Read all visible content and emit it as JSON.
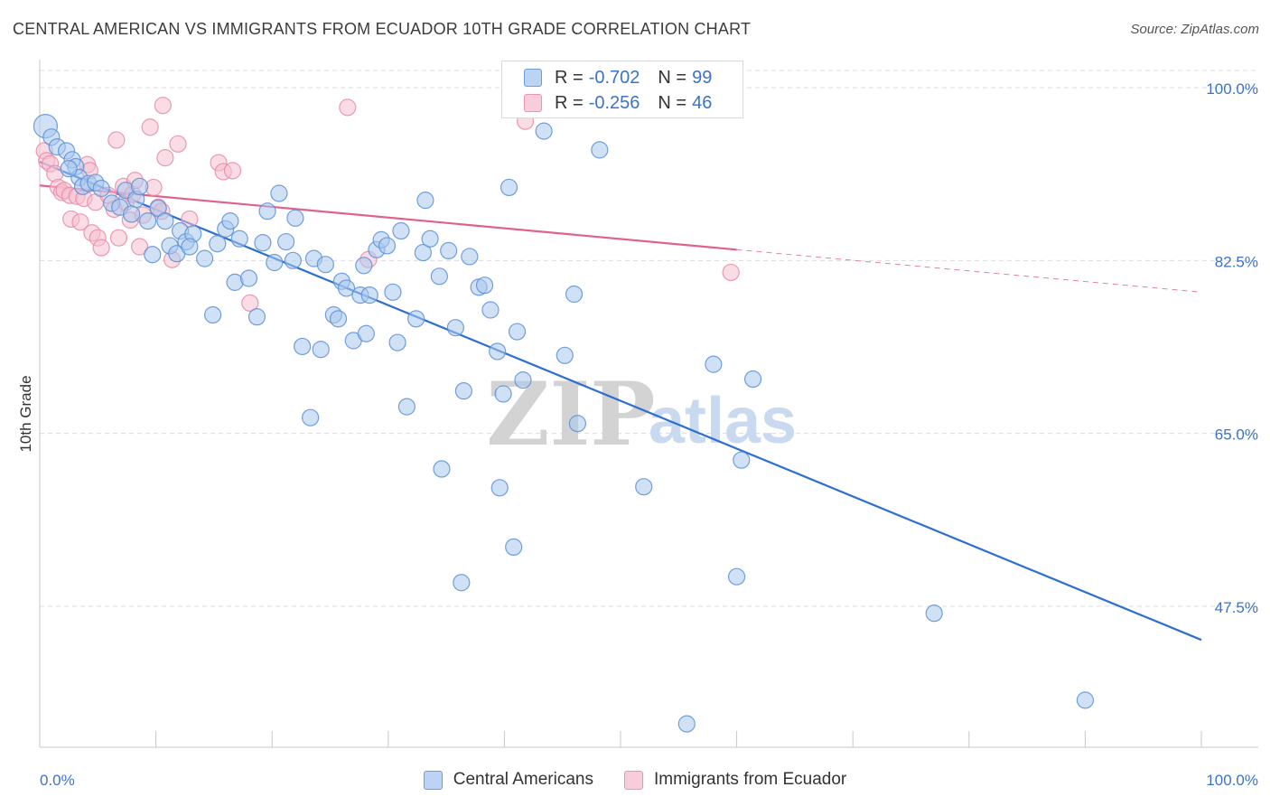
{
  "title": "CENTRAL AMERICAN VS IMMIGRANTS FROM ECUADOR 10TH GRADE CORRELATION CHART",
  "source": "Source: ZipAtlas.com",
  "watermark": {
    "zip": "ZIP",
    "atlas": "atlas"
  },
  "legend_top": [
    {
      "r_label": "R =",
      "r_value": "-0.702",
      "n_label": "N =",
      "n_value": "99"
    },
    {
      "r_label": "R =",
      "r_value": "-0.256",
      "n_label": "N =",
      "n_value": "46"
    }
  ],
  "legend_bottom": [
    "Central Americans",
    "Immigrants from Ecuador"
  ],
  "colors": {
    "blue_fill": "#a9c8ef",
    "blue_stroke": "#5a8fd6",
    "blue_line": "#2b6fd2",
    "pink_fill": "#f6bfd0",
    "pink_stroke": "#e889a8",
    "pink_line": "#e0608e",
    "axis_text": "#3b73c8",
    "grid": "#dcdcdc"
  },
  "chart_data": {
    "type": "scatter",
    "title": "CENTRAL AMERICAN VS IMMIGRANTS FROM ECUADOR 10TH GRADE CORRELATION CHART",
    "xlabel": "",
    "ylabel": "10th Grade",
    "xlim": [
      0,
      100
    ],
    "ylim": [
      32,
      101
    ],
    "x_tick_labels": [
      "0.0%",
      "100.0%"
    ],
    "y_ticks": [
      47.5,
      65.0,
      82.5,
      100.0
    ],
    "y_tick_labels": [
      "47.5%",
      "65.0%",
      "82.5%",
      "100.0%"
    ],
    "grid": true,
    "legend_position": "top-center",
    "series": [
      {
        "name": "Central Americans",
        "color": "blue",
        "points": [
          [
            0.5,
            96.1
          ],
          [
            1.0,
            95.0
          ],
          [
            1.5,
            94.0
          ],
          [
            2.3,
            93.6
          ],
          [
            2.8,
            92.7
          ],
          [
            3.1,
            92.0
          ],
          [
            3.4,
            90.9
          ],
          [
            3.7,
            90.0
          ],
          [
            4.2,
            90.3
          ],
          [
            4.8,
            90.4
          ],
          [
            5.3,
            89.8
          ],
          [
            6.2,
            88.3
          ],
          [
            6.9,
            87.9
          ],
          [
            7.4,
            89.6
          ],
          [
            8.3,
            88.7
          ],
          [
            8.6,
            90.0
          ],
          [
            9.3,
            86.5
          ],
          [
            9.7,
            83.1
          ],
          [
            10.2,
            87.8
          ],
          [
            10.8,
            86.5
          ],
          [
            11.2,
            84.0
          ],
          [
            11.8,
            83.2
          ],
          [
            12.1,
            85.5
          ],
          [
            12.6,
            84.4
          ],
          [
            13.2,
            85.2
          ],
          [
            14.2,
            82.7
          ],
          [
            14.9,
            77.0
          ],
          [
            15.3,
            84.2
          ],
          [
            16.0,
            85.7
          ],
          [
            16.4,
            86.5
          ],
          [
            16.8,
            80.3
          ],
          [
            17.2,
            84.7
          ],
          [
            18.0,
            80.7
          ],
          [
            18.7,
            76.8
          ],
          [
            19.2,
            84.3
          ],
          [
            19.6,
            87.5
          ],
          [
            20.2,
            82.3
          ],
          [
            20.6,
            89.3
          ],
          [
            21.2,
            84.4
          ],
          [
            21.8,
            82.5
          ],
          [
            22.0,
            86.8
          ],
          [
            22.6,
            73.8
          ],
          [
            23.3,
            66.6
          ],
          [
            23.6,
            82.7
          ],
          [
            24.2,
            73.5
          ],
          [
            24.6,
            82.1
          ],
          [
            25.3,
            77.0
          ],
          [
            25.7,
            76.6
          ],
          [
            26.0,
            80.4
          ],
          [
            26.4,
            79.7
          ],
          [
            27.0,
            74.4
          ],
          [
            27.6,
            79.0
          ],
          [
            28.1,
            75.1
          ],
          [
            28.4,
            79.0
          ],
          [
            29.0,
            83.6
          ],
          [
            29.4,
            84.6
          ],
          [
            29.9,
            84.0
          ],
          [
            30.4,
            79.3
          ],
          [
            30.8,
            74.2
          ],
          [
            31.1,
            85.5
          ],
          [
            31.6,
            67.7
          ],
          [
            32.4,
            76.6
          ],
          [
            33.0,
            83.3
          ],
          [
            33.2,
            88.6
          ],
          [
            33.6,
            84.7
          ],
          [
            34.4,
            80.9
          ],
          [
            34.6,
            61.4
          ],
          [
            35.2,
            83.5
          ],
          [
            35.8,
            75.7
          ],
          [
            36.3,
            49.9
          ],
          [
            36.5,
            69.3
          ],
          [
            37.0,
            82.9
          ],
          [
            37.8,
            79.8
          ],
          [
            38.3,
            80.0
          ],
          [
            38.8,
            77.5
          ],
          [
            39.4,
            73.3
          ],
          [
            39.6,
            59.5
          ],
          [
            39.9,
            69.0
          ],
          [
            40.8,
            53.5
          ],
          [
            41.1,
            75.3
          ],
          [
            41.6,
            70.4
          ],
          [
            43.4,
            95.6
          ],
          [
            45.2,
            72.9
          ],
          [
            46.0,
            79.1
          ],
          [
            46.3,
            66.0
          ],
          [
            48.2,
            93.7
          ],
          [
            52.0,
            59.6
          ],
          [
            55.7,
            35.6
          ],
          [
            58.0,
            72.0
          ],
          [
            60.0,
            50.5
          ],
          [
            60.4,
            62.3
          ],
          [
            61.4,
            70.5
          ],
          [
            77.0,
            46.8
          ],
          [
            90.0,
            38.0
          ],
          [
            40.4,
            89.9
          ],
          [
            2.5,
            91.8
          ],
          [
            7.9,
            87.2
          ],
          [
            12.9,
            83.9
          ],
          [
            27.9,
            82.0
          ]
        ],
        "trend": {
          "x": [
            0,
            100
          ],
          "y": [
            92.5,
            44.1
          ]
        }
      },
      {
        "name": "Immigrants from Ecuador",
        "color": "pink",
        "points": [
          [
            0.4,
            93.6
          ],
          [
            0.6,
            92.6
          ],
          [
            0.9,
            92.3
          ],
          [
            1.3,
            91.3
          ],
          [
            1.6,
            89.9
          ],
          [
            1.9,
            89.4
          ],
          [
            2.1,
            89.6
          ],
          [
            2.6,
            89.1
          ],
          [
            2.7,
            86.7
          ],
          [
            3.2,
            89.0
          ],
          [
            3.5,
            86.4
          ],
          [
            3.8,
            88.8
          ],
          [
            4.1,
            92.2
          ],
          [
            4.3,
            91.6
          ],
          [
            4.5,
            85.3
          ],
          [
            4.8,
            88.4
          ],
          [
            5.0,
            84.8
          ],
          [
            5.3,
            83.8
          ],
          [
            5.9,
            89.1
          ],
          [
            6.4,
            87.7
          ],
          [
            6.6,
            94.7
          ],
          [
            6.8,
            84.8
          ],
          [
            7.2,
            90.0
          ],
          [
            7.4,
            88.4
          ],
          [
            7.8,
            86.6
          ],
          [
            8.0,
            89.2
          ],
          [
            8.2,
            90.6
          ],
          [
            8.6,
            83.9
          ],
          [
            8.9,
            87.1
          ],
          [
            9.5,
            96.0
          ],
          [
            9.8,
            89.9
          ],
          [
            10.2,
            87.9
          ],
          [
            10.5,
            87.5
          ],
          [
            10.6,
            98.2
          ],
          [
            10.8,
            92.9
          ],
          [
            11.4,
            82.6
          ],
          [
            11.9,
            94.3
          ],
          [
            12.9,
            86.7
          ],
          [
            15.4,
            92.4
          ],
          [
            15.8,
            91.5
          ],
          [
            16.6,
            91.6
          ],
          [
            18.1,
            78.2
          ],
          [
            26.5,
            98.0
          ],
          [
            28.3,
            82.6
          ],
          [
            41.8,
            96.6
          ],
          [
            59.5,
            81.3
          ]
        ],
        "trend": {
          "x": [
            0,
            60
          ],
          "y": [
            90.1,
            83.6
          ]
        },
        "trend_dashed": {
          "x": [
            60,
            100
          ],
          "y": [
            83.6,
            79.3
          ]
        }
      }
    ]
  }
}
